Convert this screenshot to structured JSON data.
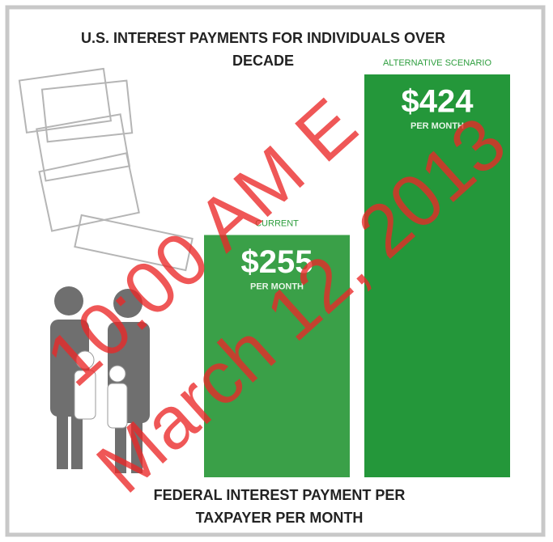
{
  "chart_data": {
    "type": "bar",
    "title": [
      "U.S. INTEREST PAYMENTS FOR INDIVIDUALS OVER",
      "DECADE"
    ],
    "categories": [
      "CURRENT",
      "ALTERNATIVE SCENARIO"
    ],
    "values": [
      255,
      424
    ],
    "value_labels": [
      "$255",
      "$424"
    ],
    "value_sublabel": "PER MONTH",
    "colors": [
      "#3aa048",
      "#24973a"
    ],
    "footer": [
      "FEDERAL INTEREST PAYMENT PER",
      "TAXPAYER PER MONTH"
    ],
    "watermark": [
      "10:00 AM E",
      "March 12, 2013"
    ]
  }
}
